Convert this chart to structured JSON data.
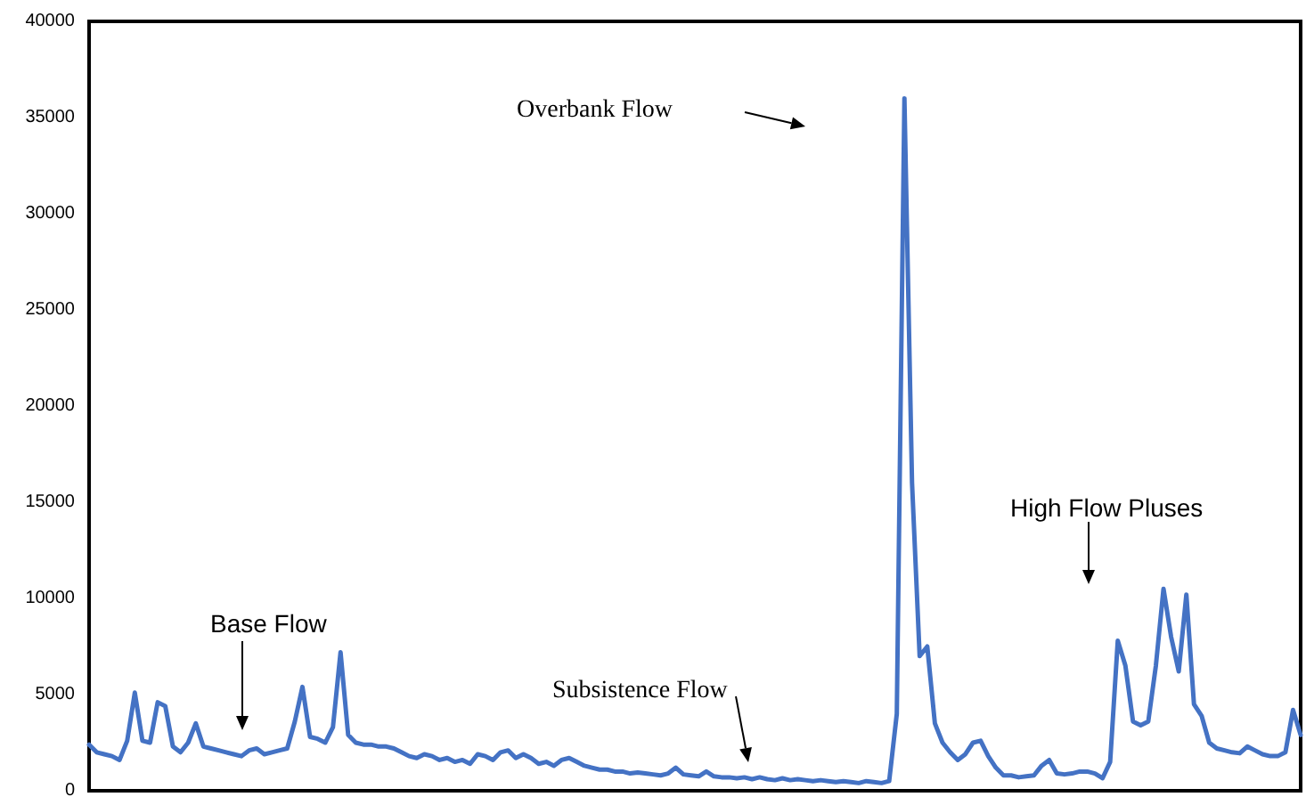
{
  "chart_data": {
    "type": "line",
    "categories": [
      null,
      null,
      null,
      null,
      null,
      null,
      null,
      null,
      null,
      null,
      null,
      null,
      null,
      null,
      null,
      null,
      null,
      null,
      null,
      null,
      null,
      null,
      null,
      null,
      null,
      null,
      null,
      null,
      null,
      null,
      null,
      null,
      null,
      null,
      null,
      null,
      null,
      null,
      null,
      null,
      null,
      null,
      null,
      null,
      null,
      null,
      null,
      null,
      null,
      null,
      null,
      null,
      null,
      null,
      null,
      null,
      null,
      null,
      null,
      null,
      null,
      null,
      null,
      null,
      null,
      null,
      null,
      null,
      null,
      null,
      null,
      null,
      null,
      null,
      null,
      null,
      null,
      null,
      null,
      null,
      null,
      null,
      null,
      null,
      null,
      null,
      null,
      null,
      null,
      null,
      null,
      null,
      null,
      null,
      null,
      null,
      null,
      null,
      null,
      null,
      null,
      null,
      null,
      null,
      null,
      null,
      null,
      null,
      null,
      null,
      null,
      null,
      null,
      null,
      null,
      null,
      null,
      null,
      null,
      null,
      null,
      null,
      null,
      null,
      null,
      null,
      null,
      null,
      null,
      null,
      null,
      null,
      null,
      null,
      null,
      null,
      null,
      null,
      null,
      null,
      null,
      null,
      null,
      null,
      null,
      null,
      null,
      null,
      null,
      null,
      null,
      null,
      null,
      null,
      null,
      null,
      null,
      null,
      null,
      null
    ],
    "series": [
      {
        "color": "#4472c4",
        "values": [
          2400,
          2000,
          1900,
          1800,
          1600,
          2600,
          5100,
          2600,
          2500,
          4600,
          4400,
          2300,
          2000,
          2500,
          3500,
          2300,
          2200,
          2100,
          2000,
          1900,
          1800,
          2100,
          2200,
          1900,
          2000,
          2100,
          2200,
          3600,
          5400,
          2800,
          2700,
          2500,
          3300,
          7200,
          2900,
          2500,
          2400,
          2400,
          2300,
          2300,
          2200,
          2000,
          1800,
          1700,
          1900,
          1800,
          1600,
          1700,
          1500,
          1600,
          1400,
          1900,
          1800,
          1600,
          2000,
          2100,
          1700,
          1900,
          1700,
          1400,
          1500,
          1300,
          1600,
          1700,
          1500,
          1300,
          1200,
          1100,
          1100,
          1000,
          1000,
          900,
          950,
          900,
          850,
          800,
          900,
          1200,
          850,
          800,
          750,
          1000,
          750,
          700,
          700,
          650,
          700,
          600,
          700,
          600,
          550,
          650,
          550,
          600,
          550,
          500,
          550,
          500,
          450,
          500,
          450,
          400,
          500,
          450,
          400,
          500,
          4000,
          36000,
          16000,
          7000,
          7500,
          3500,
          2500,
          2000,
          1600,
          1900,
          2500,
          2600,
          1800,
          1200,
          800,
          800,
          700,
          750,
          800,
          1300,
          1600,
          900,
          850,
          900,
          1000,
          1000,
          900,
          650,
          1500,
          7800,
          6500,
          3600,
          3400,
          3600,
          6500,
          10500,
          8000,
          6200,
          10200,
          4500,
          3900,
          2500,
          2200,
          2100,
          2000,
          1950,
          2300,
          2100,
          1900,
          1800,
          1800,
          2000,
          4200,
          2900
        ]
      }
    ],
    "ylim": [
      0,
      40000
    ],
    "yticks": [
      0,
      5000,
      10000,
      15000,
      20000,
      25000,
      30000,
      35000,
      40000
    ],
    "grid": false,
    "marker": "none",
    "line_style": "solid",
    "annotations": [
      "Overbank Flow",
      "Base Flow",
      "Subsistence Flow",
      "High Flow Pluses"
    ]
  }
}
